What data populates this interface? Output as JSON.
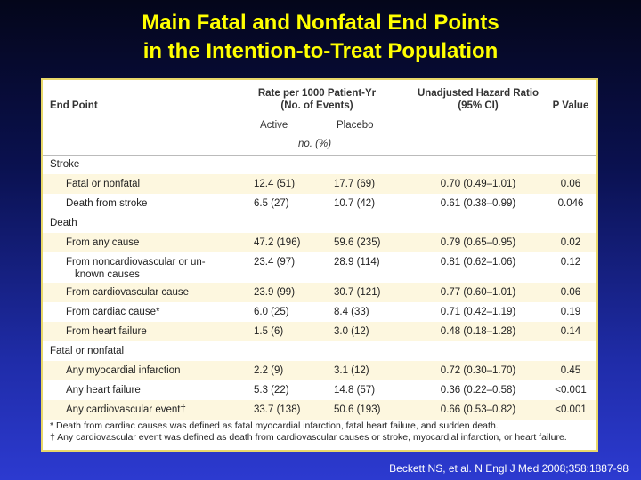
{
  "title_line1": "Main Fatal and Nonfatal End Points",
  "title_line2": "in the Intention-to-Treat Population",
  "header": {
    "end_point": "End Point",
    "rate_line1": "Rate per 1000 Patient-Yr",
    "rate_line2": "(No. of Events)",
    "hr_line1": "Unadjusted Hazard Ratio",
    "hr_line2": "(95% CI)",
    "p_value": "P Value",
    "active": "Active",
    "placebo": "Placebo",
    "units": "no. (%)"
  },
  "rows": [
    {
      "label": "Stroke",
      "section": true
    },
    {
      "label": "Fatal or nonfatal",
      "active": "12.4 (51)",
      "placebo": "17.7 (69)",
      "hr": "0.70 (0.49–1.01)",
      "p": "0.06"
    },
    {
      "label": "Death from stroke",
      "active": "6.5 (27)",
      "placebo": "10.7 (42)",
      "hr": "0.61 (0.38–0.99)",
      "p": "0.046"
    },
    {
      "label": "Death",
      "section": true
    },
    {
      "label": "From any cause",
      "active": "47.2 (196)",
      "placebo": "59.6 (235)",
      "hr": "0.79 (0.65–0.95)",
      "p": "0.02"
    },
    {
      "label": "From noncardiovascular or un-",
      "label2": "known causes",
      "active": "23.4 (97)",
      "placebo": "28.9 (114)",
      "hr": "0.81 (0.62–1.06)",
      "p": "0.12"
    },
    {
      "label": "From cardiovascular cause",
      "active": "23.9 (99)",
      "placebo": "30.7 (121)",
      "hr": "0.77 (0.60–1.01)",
      "p": "0.06"
    },
    {
      "label": "From cardiac cause*",
      "active": "6.0 (25)",
      "placebo": "8.4 (33)",
      "hr": "0.71 (0.42–1.19)",
      "p": "0.19"
    },
    {
      "label": "From heart failure",
      "active": "1.5 (6)",
      "placebo": "3.0 (12)",
      "hr": "0.48 (0.18–1.28)",
      "p": "0.14"
    },
    {
      "label": "Fatal or nonfatal",
      "section": true
    },
    {
      "label": "Any myocardial infarction",
      "active": "2.2 (9)",
      "placebo": "3.1 (12)",
      "hr": "0.72 (0.30–1.70)",
      "p": "0.45"
    },
    {
      "label": "Any heart failure",
      "active": "5.3 (22)",
      "placebo": "14.8 (57)",
      "hr": "0.36 (0.22–0.58)",
      "p": "<0.001"
    },
    {
      "label": "Any cardiovascular event†",
      "active": "33.7 (138)",
      "placebo": "50.6 (193)",
      "hr": "0.66 (0.53–0.82)",
      "p": "<0.001"
    }
  ],
  "footnotes": [
    "* Death from cardiac causes was defined as fatal myocardial infarction, fatal heart failure, and sudden death.",
    "† Any cardiovascular event was defined as death from cardiovascular causes or stroke, myocardial infarction, or heart failure."
  ],
  "citation": "Beckett NS, et al. N Engl J Med 2008;358:1887-98"
}
